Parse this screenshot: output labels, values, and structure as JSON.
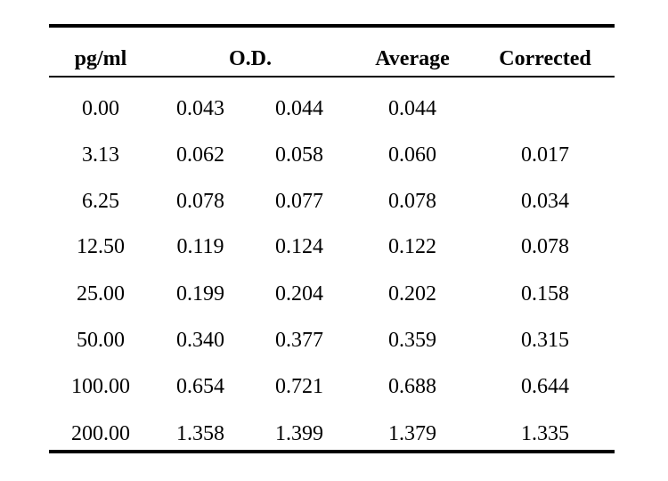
{
  "table": {
    "headers": {
      "concentration": "pg/ml",
      "od": "O.D.",
      "average": "Average",
      "corrected": "Corrected"
    },
    "rows": [
      {
        "conc": "0.00",
        "od1": "0.043",
        "od2": "0.044",
        "avg": "0.044",
        "corr": ""
      },
      {
        "conc": "3.13",
        "od1": "0.062",
        "od2": "0.058",
        "avg": "0.060",
        "corr": "0.017"
      },
      {
        "conc": "6.25",
        "od1": "0.078",
        "od2": "0.077",
        "avg": "0.078",
        "corr": "0.034"
      },
      {
        "conc": "12.50",
        "od1": "0.119",
        "od2": "0.124",
        "avg": "0.122",
        "corr": "0.078"
      },
      {
        "conc": "25.00",
        "od1": "0.199",
        "od2": "0.204",
        "avg": "0.202",
        "corr": "0.158"
      },
      {
        "conc": "50.00",
        "od1": "0.340",
        "od2": "0.377",
        "avg": "0.359",
        "corr": "0.315"
      },
      {
        "conc": "100.00",
        "od1": "0.654",
        "od2": "0.721",
        "avg": "0.688",
        "corr": "0.644"
      },
      {
        "conc": "200.00",
        "od1": "1.358",
        "od2": "1.399",
        "avg": "1.379",
        "corr": "1.335"
      }
    ]
  }
}
